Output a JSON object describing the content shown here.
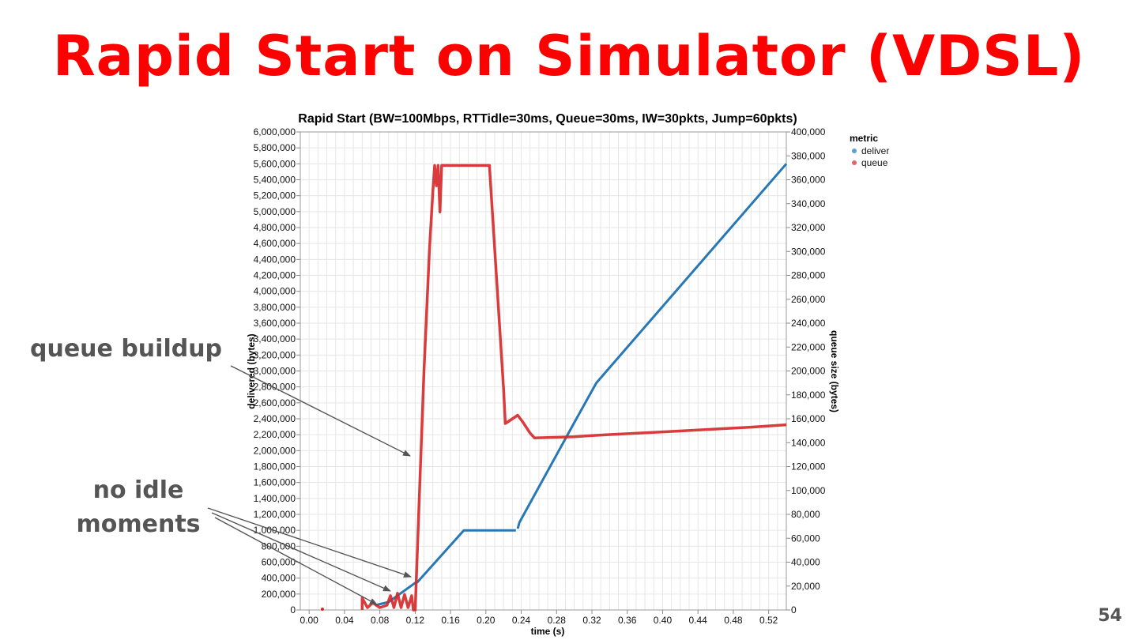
{
  "slide": {
    "title": "Rapid Start on Simulator (VDSL)",
    "page_number": "54"
  },
  "annotations": {
    "queue_buildup": "queue buildup",
    "no_idle_line1": "no idle",
    "no_idle_line2": "moments"
  },
  "colors": {
    "title": "#ff0000",
    "deliver": "#2878b5",
    "queue": "#d62728",
    "annotation": "#555555"
  },
  "chart_data": {
    "type": "line",
    "title": "Rapid Start (BW=100Mbps, RTTidle=30ms, Queue=30ms, IW=30pkts, Jump=60pkts)",
    "xlabel": "time (s)",
    "ylabel_left": "delivered (bytes)",
    "ylabel_right": "queue size (bytes)",
    "xlim": [
      -0.01,
      0.54
    ],
    "ylim_left": [
      0,
      6000000
    ],
    "ylim_right": [
      0,
      400000
    ],
    "x_ticks": [
      "0.00",
      "0.04",
      "0.08",
      "0.12",
      "0.16",
      "0.20",
      "0.24",
      "0.28",
      "0.32",
      "0.36",
      "0.40",
      "0.44",
      "0.48",
      "0.52"
    ],
    "x_tick_values": [
      0.0,
      0.04,
      0.08,
      0.12,
      0.16,
      0.2,
      0.24,
      0.28,
      0.32,
      0.36,
      0.4,
      0.44,
      0.48,
      0.52
    ],
    "y_left_ticks": [
      "0",
      "200,000",
      "400,000",
      "600,000",
      "800,000",
      "1,000,000",
      "1,200,000",
      "1,400,000",
      "1,600,000",
      "1,800,000",
      "2,000,000",
      "2,200,000",
      "2,400,000",
      "2,600,000",
      "2,800,000",
      "3,000,000",
      "3,200,000",
      "3,400,000",
      "3,600,000",
      "3,800,000",
      "4,000,000",
      "4,200,000",
      "4,400,000",
      "4,600,000",
      "4,800,000",
      "5,000,000",
      "5,200,000",
      "5,400,000",
      "5,600,000",
      "5,800,000",
      "6,000,000"
    ],
    "y_right_ticks": [
      "0",
      "20,000",
      "40,000",
      "60,000",
      "80,000",
      "100,000",
      "120,000",
      "140,000",
      "160,000",
      "180,000",
      "200,000",
      "220,000",
      "240,000",
      "260,000",
      "280,000",
      "300,000",
      "320,000",
      "340,000",
      "360,000",
      "380,000",
      "400,000"
    ],
    "grid": true,
    "legend": {
      "title": "metric",
      "placement": "top-right",
      "entries": [
        "deliver",
        "queue"
      ]
    },
    "series": [
      {
        "name": "deliver",
        "axis": "left",
        "points": [
          [
            0.075,
            60000
          ],
          [
            0.09,
            100000
          ],
          [
            0.12,
            340000
          ],
          [
            0.1225,
            350000
          ],
          [
            0.175,
            1000000
          ],
          [
            0.234,
            1000000
          ],
          [
            0.236,
            1020000
          ],
          [
            0.238,
            1100000
          ],
          [
            0.3,
            2350000
          ],
          [
            0.325,
            2850000
          ],
          [
            0.54,
            5600000
          ]
        ]
      },
      {
        "name": "queue",
        "axis": "right",
        "points": [
          [
            0.015,
            0
          ],
          [
            0.015,
            0
          ],
          [
            0.06,
            0
          ],
          [
            0.06,
            10000
          ],
          [
            0.066,
            2000
          ],
          [
            0.072,
            6000
          ],
          [
            0.08,
            2000
          ],
          [
            0.088,
            4000
          ],
          [
            0.092,
            12000
          ],
          [
            0.096,
            2000
          ],
          [
            0.1,
            14000
          ],
          [
            0.104,
            2000
          ],
          [
            0.108,
            13000
          ],
          [
            0.112,
            2000
          ],
          [
            0.116,
            12000
          ],
          [
            0.118,
            0
          ],
          [
            0.12,
            0
          ],
          [
            0.124,
            80000
          ],
          [
            0.13,
            200000
          ],
          [
            0.136,
            300000
          ],
          [
            0.14,
            350000
          ],
          [
            0.142,
            372000
          ],
          [
            0.144,
            355000
          ],
          [
            0.146,
            372000
          ],
          [
            0.148,
            333000
          ],
          [
            0.15,
            372000
          ],
          [
            0.2,
            372000
          ],
          [
            0.204,
            372000
          ],
          [
            0.22,
            185000
          ],
          [
            0.222,
            156000
          ],
          [
            0.23,
            160000
          ],
          [
            0.236,
            163000
          ],
          [
            0.242,
            157000
          ],
          [
            0.25,
            148000
          ],
          [
            0.255,
            144000
          ],
          [
            0.3,
            145000
          ],
          [
            0.32,
            146000
          ],
          [
            0.4,
            149000
          ],
          [
            0.45,
            151000
          ],
          [
            0.5,
            153000
          ],
          [
            0.54,
            155000
          ]
        ]
      }
    ]
  }
}
